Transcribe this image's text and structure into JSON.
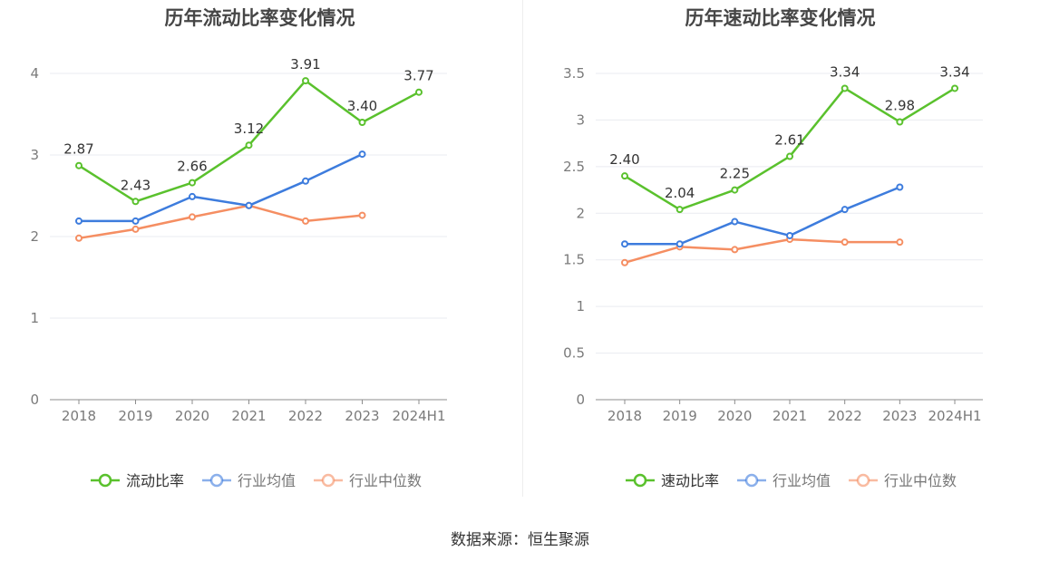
{
  "charts": [
    {
      "title": "历年流动比率变化情况",
      "chart_data": {
        "type": "line",
        "categories": [
          "2018",
          "2019",
          "2020",
          "2021",
          "2022",
          "2023",
          "2024H1"
        ],
        "ylim": [
          0,
          4
        ],
        "yticks": [
          "0",
          "1",
          "2",
          "3",
          "4"
        ],
        "grid": true,
        "legend_position": "bottom",
        "series": [
          {
            "name": "流动比率",
            "color": "#5ac12d",
            "values": [
              2.87,
              2.43,
              2.66,
              3.12,
              3.91,
              3.4,
              3.77
            ],
            "labels": [
              "2.87",
              "2.43",
              "2.66",
              "3.12",
              "3.91",
              "3.40",
              "3.77"
            ]
          },
          {
            "name": "行业均值",
            "color": "#3d7cdd",
            "values": [
              2.19,
              2.19,
              2.49,
              2.38,
              2.68,
              3.01,
              null
            ],
            "labels": null
          },
          {
            "name": "行业中位数",
            "color": "#f58e62",
            "values": [
              1.98,
              2.09,
              2.24,
              2.38,
              2.19,
              2.26,
              null
            ],
            "labels": null
          }
        ]
      }
    },
    {
      "title": "历年速动比率变化情况",
      "chart_data": {
        "type": "line",
        "categories": [
          "2018",
          "2019",
          "2020",
          "2021",
          "2022",
          "2023",
          "2024H1"
        ],
        "ylim": [
          0,
          3.5
        ],
        "yticks": [
          "0",
          "0.5",
          "1",
          "1.5",
          "2",
          "2.5",
          "3",
          "3.5"
        ],
        "grid": true,
        "legend_position": "bottom",
        "series": [
          {
            "name": "速动比率",
            "color": "#5ac12d",
            "values": [
              2.4,
              2.04,
              2.25,
              2.61,
              3.34,
              2.98,
              3.34
            ],
            "labels": [
              "2.40",
              "2.04",
              "2.25",
              "2.61",
              "3.34",
              "2.98",
              "3.34"
            ]
          },
          {
            "name": "行业均值",
            "color": "#3d7cdd",
            "values": [
              1.67,
              1.67,
              1.91,
              1.76,
              2.04,
              2.28,
              null
            ],
            "labels": null
          },
          {
            "name": "行业中位数",
            "color": "#f58e62",
            "values": [
              1.47,
              1.64,
              1.61,
              1.72,
              1.69,
              1.69,
              null
            ],
            "labels": null
          }
        ]
      }
    }
  ],
  "source": "数据来源：恒生聚源"
}
